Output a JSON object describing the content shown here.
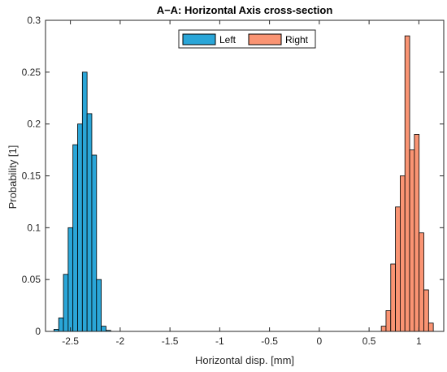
{
  "chart_data": {
    "type": "bar",
    "title": "A−A: Horizontal Axis cross-section",
    "xlabel": "Horizontal disp. [mm]",
    "ylabel": "Probability [1]",
    "xlim": [
      -2.75,
      1.25
    ],
    "ylim": [
      0,
      0.3
    ],
    "xticks": [
      -2.5,
      -2,
      -1.5,
      -1,
      -0.5,
      0,
      0.5,
      1
    ],
    "xtick_labels": [
      "-2.5",
      "-2",
      "-1.5",
      "-1",
      "-0.5",
      "0",
      "0.5",
      "1"
    ],
    "yticks": [
      0,
      0.05,
      0.1,
      0.15,
      0.2,
      0.25,
      0.3
    ],
    "ytick_labels": [
      "0",
      "0.05",
      "0.1",
      "0.15",
      "0.2",
      "0.25",
      "0.3"
    ],
    "grid": false,
    "legend_position": "top-center",
    "series": [
      {
        "name": "Left",
        "color": "#2aa6d8",
        "bin_width": 0.0475,
        "bin_edges_start": [
          -2.665,
          -2.6175,
          -2.57,
          -2.5225,
          -2.475,
          -2.4275,
          -2.38,
          -2.3325,
          -2.285,
          -2.2375,
          -2.19,
          -2.1425
        ],
        "values": [
          0.002,
          0.013,
          0.055,
          0.1,
          0.18,
          0.2,
          0.25,
          0.21,
          0.17,
          0.05,
          0.005,
          0.001
        ]
      },
      {
        "name": "Right",
        "color": "#fa9473",
        "bin_width": 0.0475,
        "bin_edges_start": [
          0.6225,
          0.67,
          0.7175,
          0.765,
          0.8125,
          0.86,
          0.9075,
          0.955,
          1.0025,
          1.05,
          1.0975
        ],
        "values": [
          0.005,
          0.02,
          0.065,
          0.12,
          0.15,
          0.285,
          0.175,
          0.19,
          0.095,
          0.04,
          0.008
        ]
      }
    ]
  }
}
